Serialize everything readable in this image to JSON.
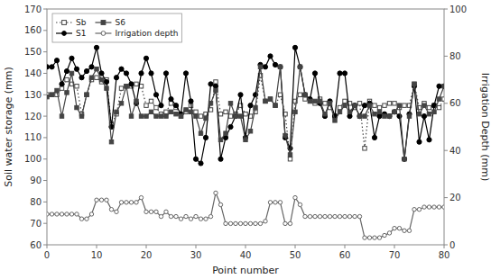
{
  "chart_data": {
    "type": "line",
    "x": [
      0,
      1,
      2,
      3,
      4,
      5,
      6,
      7,
      8,
      9,
      10,
      11,
      12,
      13,
      14,
      15,
      16,
      17,
      18,
      19,
      20,
      21,
      22,
      23,
      24,
      25,
      26,
      27,
      28,
      29,
      30,
      31,
      32,
      33,
      34,
      35,
      36,
      37,
      38,
      39,
      40,
      41,
      42,
      43,
      44,
      45,
      46,
      47,
      48,
      49,
      50,
      51,
      52,
      53,
      54,
      55,
      56,
      57,
      58,
      59,
      60,
      61,
      62,
      63,
      64,
      65,
      66,
      67,
      68,
      69,
      70,
      71,
      72,
      73,
      74,
      75,
      76,
      77,
      78,
      79,
      80
    ],
    "series": [
      {
        "name": "Sb",
        "color": "#444444",
        "marker": "open-square",
        "line_style": "dotted",
        "values": [
          130,
          130,
          130,
          133,
          137,
          135,
          134,
          121,
          130,
          137,
          138,
          136,
          137,
          116,
          121,
          133,
          134,
          134,
          135,
          134,
          125,
          127,
          124,
          121,
          122,
          126,
          124,
          120,
          122,
          125,
          122,
          120,
          121,
          123,
          136,
          121,
          122,
          120,
          121,
          125,
          121,
          120,
          122,
          139,
          127,
          128,
          125,
          130,
          121,
          100,
          127,
          130,
          128,
          127,
          126,
          128,
          126,
          124,
          120,
          124,
          127,
          126,
          124,
          126,
          105,
          127,
          125,
          124,
          125,
          126,
          126,
          124,
          125,
          125,
          135,
          124,
          126,
          124,
          125,
          124,
          128
        ]
      },
      {
        "name": "S1",
        "color": "#000000",
        "marker": "circle",
        "line_style": "solid",
        "values": [
          143,
          143,
          146,
          135,
          141,
          147,
          142,
          138,
          141,
          143,
          152,
          140,
          136,
          115,
          138,
          142,
          140,
          135,
          126,
          140,
          147,
          140,
          130,
          125,
          140,
          128,
          125,
          121,
          140,
          127,
          100,
          98,
          110,
          135,
          134,
          100,
          110,
          115,
          120,
          130,
          110,
          125,
          130,
          144,
          143,
          148,
          144,
          143,
          110,
          105,
          152,
          143,
          130,
          128,
          140,
          126,
          120,
          127,
          120,
          140,
          140,
          120,
          125,
          120,
          125,
          126,
          110,
          120,
          121,
          120,
          122,
          120,
          100,
          121,
          134,
          108,
          120,
          109,
          125,
          134,
          134
        ]
      },
      {
        "name": "S6",
        "color": "#444444",
        "marker": "square",
        "line_style": "solid",
        "values": [
          129,
          130,
          132,
          120,
          131,
          140,
          124,
          120,
          130,
          138,
          142,
          137,
          133,
          108,
          122,
          126,
          134,
          120,
          127,
          120,
          120,
          122,
          120,
          120,
          120,
          122,
          121,
          120,
          123,
          122,
          120,
          112,
          119,
          126,
          132,
          109,
          112,
          126,
          120,
          120,
          109,
          113,
          124,
          143,
          127,
          128,
          125,
          143,
          111,
          102,
          122,
          143,
          130,
          127,
          127,
          127,
          121,
          126,
          118,
          122,
          125,
          122,
          125,
          120,
          120,
          125,
          121,
          122,
          120,
          120,
          122,
          125,
          100,
          120,
          135,
          121,
          125,
          121,
          122,
          128,
          134
        ]
      },
      {
        "name": "Irrigation depth",
        "color": "#666666",
        "marker": "open-circle",
        "line_style": "solid",
        "axis": "y2",
        "values": [
          13,
          13,
          13,
          13,
          13,
          13,
          13,
          11,
          11,
          13,
          19,
          19,
          19,
          15,
          14,
          18,
          18,
          18,
          18,
          20,
          14,
          14,
          14,
          12,
          14,
          12,
          12,
          11,
          12,
          11,
          12,
          11,
          11,
          12,
          22,
          17,
          9,
          9,
          9,
          9,
          9,
          9,
          9,
          9,
          10,
          18,
          18,
          18,
          9,
          9,
          20,
          17,
          12,
          12,
          12,
          12,
          12,
          12,
          12,
          12,
          12,
          12,
          12,
          12,
          3,
          3,
          3,
          3,
          4,
          5,
          7,
          7,
          6,
          6,
          15,
          15,
          16,
          16,
          16,
          16,
          16
        ]
      }
    ],
    "xlabel": "Point number",
    "ylabel": "Soil water storage (mm)",
    "y2label": "Irrigation Depth (mm)",
    "xlim": [
      0,
      80
    ],
    "xticks": [
      0,
      10,
      20,
      30,
      40,
      50,
      60,
      70,
      80
    ],
    "ylim": [
      60,
      170
    ],
    "yticks": [
      60,
      70,
      80,
      90,
      100,
      110,
      120,
      130,
      140,
      150,
      160,
      170
    ],
    "y2lim": [
      0,
      100
    ],
    "y2ticks": [
      0,
      20,
      40,
      60,
      80,
      100
    ],
    "grid": false,
    "legend": "upper left"
  }
}
